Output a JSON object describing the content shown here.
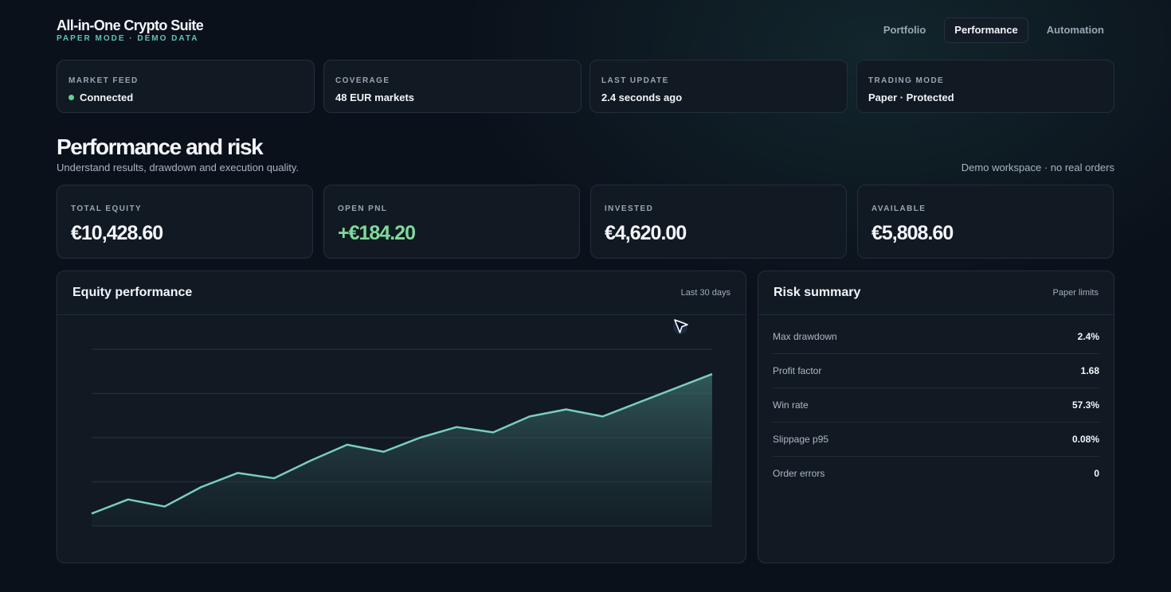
{
  "app": {
    "title": "All-in-One Crypto Suite",
    "subtitle": "PAPER MODE · DEMO DATA"
  },
  "nav": {
    "tabs": [
      {
        "label": "Portfolio",
        "active": false
      },
      {
        "label": "Performance",
        "active": true
      },
      {
        "label": "Automation",
        "active": false
      }
    ]
  },
  "status": [
    {
      "label": "MARKET FEED",
      "value": "Connected",
      "indicator": "#5dd492"
    },
    {
      "label": "COVERAGE",
      "value": "48 EUR markets"
    },
    {
      "label": "LAST UPDATE",
      "value": "2.4 seconds ago"
    },
    {
      "label": "TRADING MODE",
      "value": "Paper · Protected"
    }
  ],
  "page": {
    "title": "Performance and risk",
    "subtitle": "Understand results, drawdown and execution quality.",
    "note": "Demo workspace · no real orders"
  },
  "kpis": [
    {
      "label": "TOTAL EQUITY",
      "value": "€10,428.60"
    },
    {
      "label": "OPEN PNL",
      "value": "+€184.20",
      "positive": true
    },
    {
      "label": "INVESTED",
      "value": "€4,620.00"
    },
    {
      "label": "AVAILABLE",
      "value": "€5,808.60"
    }
  ],
  "equity_panel": {
    "title": "Equity performance",
    "meta": "Last 30 days"
  },
  "risk_panel": {
    "title": "Risk summary",
    "meta": "Paper limits",
    "rows": [
      {
        "label": "Max drawdown",
        "value": "2.4%"
      },
      {
        "label": "Profit factor",
        "value": "1.68"
      },
      {
        "label": "Win rate",
        "value": "57.3%"
      },
      {
        "label": "Slippage p95",
        "value": "0.08%"
      },
      {
        "label": "Order errors",
        "value": "0"
      }
    ]
  },
  "chart_data": {
    "type": "area",
    "title": "",
    "xlabel": "",
    "ylabel": "",
    "grid": true,
    "ylim": [
      0,
      100
    ],
    "x": [
      0,
      1,
      2,
      3,
      4,
      5,
      6,
      7,
      8,
      9,
      10,
      11,
      12,
      13,
      14,
      15,
      16,
      17
    ],
    "series": [
      {
        "values": [
          7,
          15,
          11,
          22,
          30,
          27,
          37,
          46,
          42,
          50,
          56,
          53,
          62,
          66,
          62,
          70,
          78,
          86
        ]
      }
    ],
    "colors": {
      "line": "#79cdbf",
      "fill": "#2f5a5a"
    }
  }
}
